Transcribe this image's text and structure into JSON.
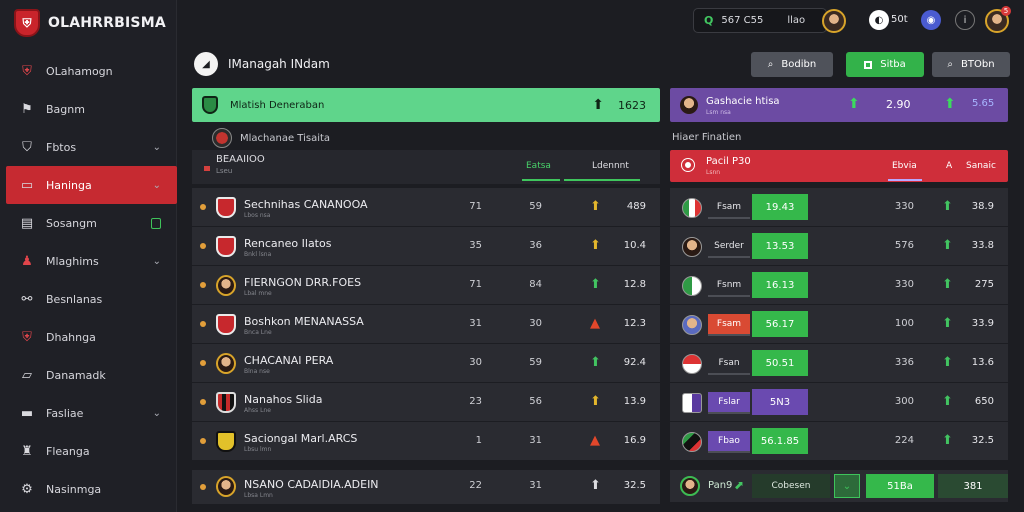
{
  "app": {
    "brand": "OLAHRRBISMA"
  },
  "sidebar": {
    "items": [
      {
        "label": "OLahamogn",
        "icon": "crest-icon"
      },
      {
        "label": "Bagnm",
        "icon": "flag-icon"
      },
      {
        "label": "Fbtos",
        "icon": "shield-icon",
        "chevron": true
      },
      {
        "label": "Haninga",
        "icon": "ticket-icon",
        "chevron": true,
        "active": true
      },
      {
        "label": "Sosangm",
        "icon": "card-icon",
        "badge": true
      },
      {
        "label": "Mlaghims",
        "icon": "player-icon",
        "chevron": true
      },
      {
        "label": "Besnlanas",
        "icon": "handshake-icon"
      },
      {
        "label": "Dhahnga",
        "icon": "crest-icon"
      },
      {
        "label": "Danamadk",
        "icon": "chat-icon"
      },
      {
        "label": "Fasliae",
        "icon": "folder-icon",
        "chevron": true
      },
      {
        "label": "Fleanga",
        "icon": "trophy-icon"
      },
      {
        "label": "Nasinmga",
        "icon": "settings-icon"
      }
    ]
  },
  "topbar": {
    "search_value": "567 C55",
    "search_label": "llao",
    "user_text": "50t",
    "notif_count": "5"
  },
  "header": {
    "title": "IManagah INdam",
    "buttons": {
      "b1": "Bodibn",
      "b2": "Sitba",
      "b3": "BTObn"
    }
  },
  "left": {
    "banner": {
      "title": "Mlatish Deneraban",
      "value": "1623"
    },
    "subheader": "Mlachanae Tisaita",
    "col_label": "BEAAIIOO",
    "col_sub": "Lseu",
    "col_h1": "Eatsa",
    "col_h2": "Ldennnt",
    "rows": [
      {
        "name": "Sechnihas CANANOOA",
        "meta": "Lbos nsa",
        "c1": "71",
        "c2": "59",
        "trend": "up-yellow",
        "c3": "489"
      },
      {
        "name": "Rencaneo Ilatos",
        "meta": "Bnkl lsna",
        "c1": "35",
        "c2": "36",
        "trend": "up-yellow",
        "c3": "10.4"
      },
      {
        "name": "FIERNGON DRR.FOES",
        "meta": "Lbal mne",
        "c1": "71",
        "c2": "84",
        "trend": "up",
        "c3": "12.8"
      },
      {
        "name": "Boshkon MENANASSA",
        "meta": "Bnca Lne",
        "c1": "31",
        "c2": "30",
        "trend": "down",
        "c3": "12.3"
      },
      {
        "name": "CHACANAI PERA",
        "meta": "Blna nse",
        "c1": "30",
        "c2": "59",
        "trend": "up",
        "c3": "92.4"
      },
      {
        "name": "Nanahos Slida",
        "meta": "Ahss Lne",
        "c1": "23",
        "c2": "56",
        "trend": "up-yellow",
        "c3": "13.9"
      },
      {
        "name": "Saciongal Marl.ARCS",
        "meta": "Lbsu lmn",
        "c1": "1",
        "c2": "31",
        "trend": "down",
        "c3": "16.9"
      }
    ],
    "last_row": {
      "name": "NSANO CADAIDIA.ADEIN",
      "meta": "Lbsa Lmn",
      "c1": "22",
      "c2": "31",
      "c3": "32.5"
    }
  },
  "right": {
    "banner": {
      "title": "Gashacie htisa",
      "sub": "Lsm nsa",
      "n1": "2.90",
      "n2": "5.65"
    },
    "subheader": "Hiaer Finatien",
    "head": {
      "title": "Pacil P30",
      "sub": "Lsnn",
      "h1": "Ebvia",
      "h2": "A",
      "h3": "Sanaic"
    },
    "rows": [
      {
        "lbl": "Fsam",
        "lbl_style": "plain",
        "val": "19.43",
        "val_style": "green",
        "c1": "330",
        "c2": "38.9"
      },
      {
        "lbl": "Serder",
        "lbl_style": "plain",
        "val": "13.53",
        "val_style": "green",
        "c1": "576",
        "c2": "33.8"
      },
      {
        "lbl": "Fsnm",
        "lbl_style": "plain",
        "val": "16.13",
        "val_style": "green",
        "c1": "330",
        "c2": "275"
      },
      {
        "lbl": "Fsam",
        "lbl_style": "red",
        "val": "56.17",
        "val_style": "green",
        "c1": "100",
        "c2": "33.9"
      },
      {
        "lbl": "Fsan",
        "lbl_style": "plain",
        "val": "50.51",
        "val_style": "green",
        "c1": "336",
        "c2": "13.6"
      },
      {
        "lbl": "Fslar",
        "lbl_style": "purple",
        "val": "5N3",
        "val_style": "purple",
        "c1": "300",
        "c2": "650"
      },
      {
        "lbl": "Fbao",
        "lbl_style": "purple",
        "val": "56.1.85",
        "val_style": "green",
        "c1": "224",
        "c2": "32.5"
      }
    ],
    "foot": {
      "label": "Pan9",
      "b1": "Cobesen",
      "b2": "51Ba",
      "b3": "381"
    }
  }
}
